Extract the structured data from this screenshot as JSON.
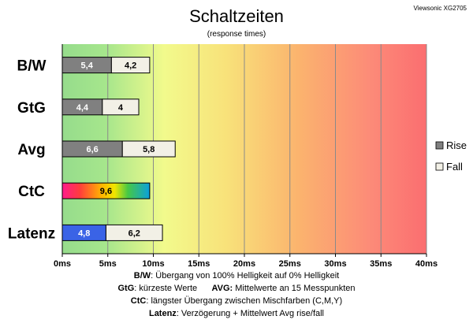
{
  "chart_data": {
    "type": "bar",
    "orientation": "horizontal",
    "stacked": true,
    "title": "Schaltzeiten",
    "subtitle": "(response times)",
    "brand": "Viewsonic XG2705",
    "categories": [
      "B/W",
      "GtG",
      "Avg",
      "CtC",
      "Latenz"
    ],
    "series": [
      {
        "name": "Rise",
        "values": [
          5.4,
          4.4,
          6.6,
          9.6,
          4.8
        ],
        "labels": [
          "5,4",
          "4,4",
          "6,6",
          "9,6",
          "4,8"
        ]
      },
      {
        "name": "Fall",
        "values": [
          4.2,
          4.0,
          5.8,
          null,
          6.2
        ],
        "labels": [
          "4,2",
          "4",
          "5,8",
          "",
          "6,2"
        ]
      }
    ],
    "xlim": [
      0,
      40
    ],
    "xticks": [
      0,
      5,
      10,
      15,
      20,
      25,
      30,
      35,
      40
    ],
    "xtick_labels": [
      "0ms",
      "5ms",
      "10ms",
      "15ms",
      "20ms",
      "25ms",
      "30ms",
      "35ms",
      "40ms"
    ],
    "grid": true,
    "legend_position": "right",
    "colors": {
      "rise": "#808080",
      "fall": "#f2f0e6",
      "latenz_rise": "#3a63e6",
      "grid": "#8a8a8a"
    },
    "notes": [
      {
        "label": "B/W",
        "text": ":  Übergang von 100% Helligkeit auf 0% Helligkeit"
      },
      {
        "label": "GtG",
        "text": ": kürzeste  Werte",
        "label2": "AVG:",
        "text2": " Mittelwerte  an 15 Messpunkten"
      },
      {
        "label": "CtC",
        "text": ": längster Übergang zwischen Mischfarben (C,M,Y)"
      },
      {
        "label": "Latenz",
        "text": ": Verzögerung  + Mittelwert Avg rise/fall"
      }
    ]
  }
}
